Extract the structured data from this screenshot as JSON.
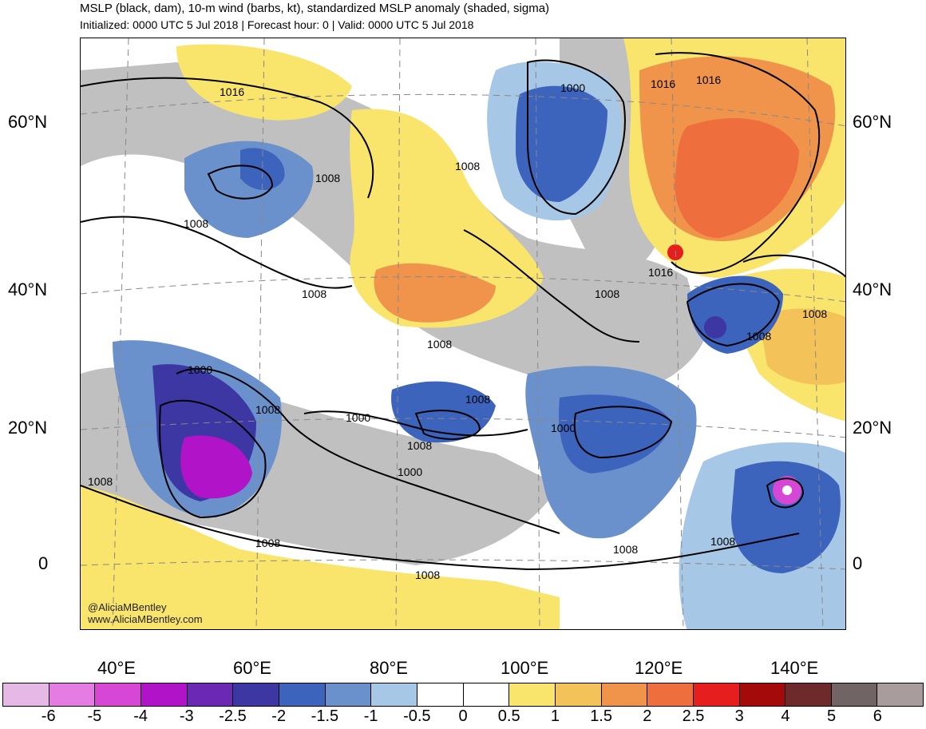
{
  "title": "MSLP (black, dam), 10-m wind (barbs, kt), standardized MSLP anomaly (shaded, sigma)",
  "subtitle": "Initialized: 0000 UTC 5 Jul 2018 | Forecast hour: 0 | Valid: 0000 UTC 5 Jul 2018",
  "lat_labels": [
    "60°N",
    "40°N",
    "20°N",
    "0"
  ],
  "lon_labels": [
    "40°E",
    "60°E",
    "80°E",
    "100°E",
    "120°E",
    "140°E"
  ],
  "credit": [
    "@AliciaMBentley",
    "www.AliciaMBentley.com"
  ],
  "contour_labels": [
    "1016",
    "1008",
    "1008",
    "1008",
    "1008",
    "1008",
    "1000",
    "1008",
    "1016",
    "1016",
    "1016",
    "1008",
    "1008",
    "1000",
    "1008",
    "1008",
    "1000",
    "1008",
    "1000",
    "1000",
    "1008",
    "1008",
    "1008",
    "1008",
    "1008"
  ],
  "colorbar": {
    "labels": [
      "-6",
      "-5",
      "-4",
      "-3",
      "-2.5",
      "-2",
      "-1.5",
      "-1",
      "-0.5",
      "0",
      "0.5",
      "1",
      "1.5",
      "2",
      "2.5",
      "3",
      "4",
      "5",
      "6"
    ],
    "colors": [
      "#e6b8e6",
      "#e47ce4",
      "#d647d6",
      "#b114c8",
      "#6a28b4",
      "#3c37a2",
      "#3c64bd",
      "#6a91cc",
      "#a6c8e6",
      "#ffffff",
      "#ffffff",
      "#f9e46c",
      "#f3c259",
      "#f0944c",
      "#ef6e3e",
      "#e61e1e",
      "#a50a0a",
      "#6e2a2a",
      "#706464",
      "#a89c9c"
    ]
  }
}
